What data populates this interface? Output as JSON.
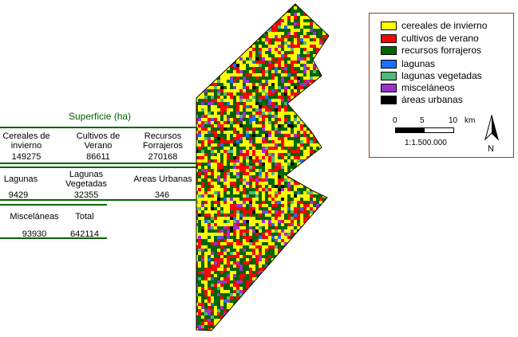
{
  "table": {
    "title": "Superficie (ha)",
    "rows": [
      [
        {
          "label": "Cereales de\ninvierno",
          "value": "149275"
        },
        {
          "label": "Cultivos de\nVerano",
          "value": "86611"
        },
        {
          "label": "Recursos\nForrajeros",
          "value": "270168"
        }
      ],
      [
        {
          "label": "Lagunas",
          "value": "9429"
        },
        {
          "label": "Lagunas\nVegetadas",
          "value": "32355"
        },
        {
          "label": "Areas Urbanas",
          "value": "346"
        }
      ],
      [
        {
          "label": "Misceláneas",
          "value": "93930"
        },
        {
          "label": "Total",
          "value": "642114"
        }
      ]
    ]
  },
  "legend": {
    "items": [
      {
        "label": "cereales de invierno",
        "color": "#ffff00"
      },
      {
        "label": "cultivos de verano",
        "color": "#ff0000"
      },
      {
        "label": "recursos forrajeros",
        "color": "#006400"
      },
      {
        "label": "lagunas",
        "color": "#1e6fff"
      },
      {
        "label": "lagunas vegetadas",
        "color": "#50b878"
      },
      {
        "label": "misceláneos",
        "color": "#9a32cd"
      },
      {
        "label": "áreas urbanas",
        "color": "#000000"
      }
    ],
    "scale_ticks": [
      "0",
      "5",
      "10",
      "km"
    ],
    "scale_ratio": "1:1.500.000",
    "north_label": "N"
  }
}
